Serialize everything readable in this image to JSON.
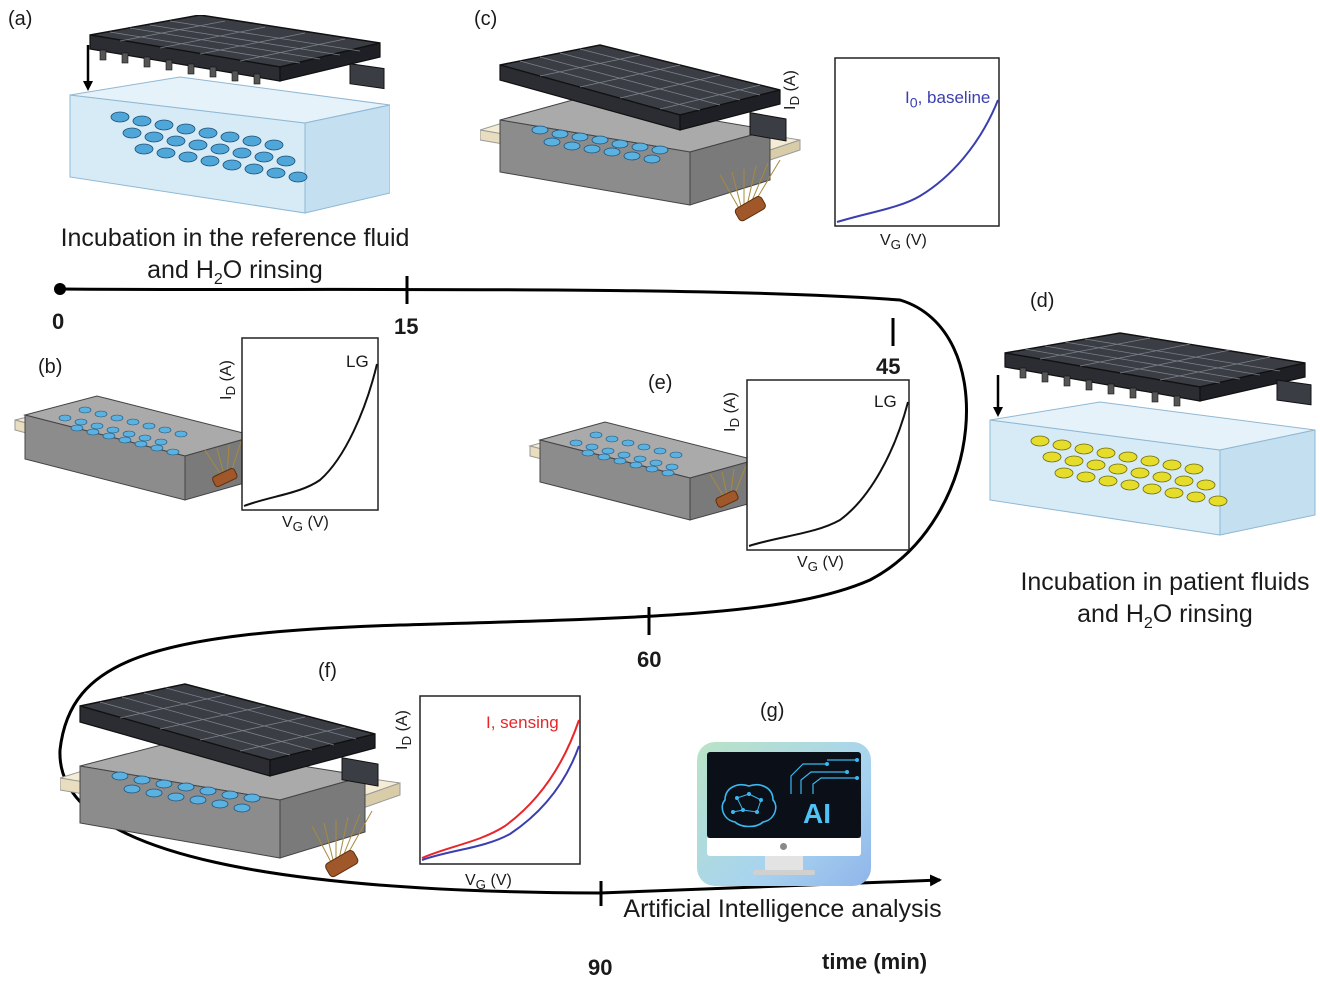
{
  "panels": {
    "a": {
      "label": "(a)",
      "caption_line1": "Incubation in the reference fluid",
      "caption_line2_pre": "and H",
      "caption_line2_sub": "2",
      "caption_line2_post": "O rinsing"
    },
    "b": {
      "label": "(b)",
      "curve_label": "LG"
    },
    "c": {
      "label": "(c)",
      "curve_label_pre": "I",
      "curve_label_sub": "0",
      "curve_label_post": ", baseline"
    },
    "d": {
      "label": "(d)",
      "caption_line1": "Incubation in patient fluids",
      "caption_line2_pre": "and H",
      "caption_line2_sub": "2",
      "caption_line2_post": "O rinsing"
    },
    "e": {
      "label": "(e)",
      "curve_label": "LG"
    },
    "f": {
      "label": "(f)",
      "curve_label": "I, sensing"
    },
    "g": {
      "label": "(g)",
      "caption": "Artificial Intelligence analysis",
      "screen_text": "AI"
    }
  },
  "axes": {
    "y_pre": "I",
    "y_sub": "D",
    "y_post": " (A)",
    "x_pre": "V",
    "x_sub": "G",
    "x_post": " (V)"
  },
  "timeline": {
    "ticks": [
      "0",
      "15",
      "45",
      "60",
      "90"
    ],
    "axis_label": "time (min)"
  },
  "colors": {
    "baseline_curve": "#3a3fb0",
    "sensing_curve": "#e8262a",
    "lg_curve": "#111111",
    "reference_fluid": "#4fa6d8",
    "patient_fluid": "#e6dc2a",
    "plate_dark": "#2b2d33",
    "plate_grey": "#9a9a9a"
  }
}
